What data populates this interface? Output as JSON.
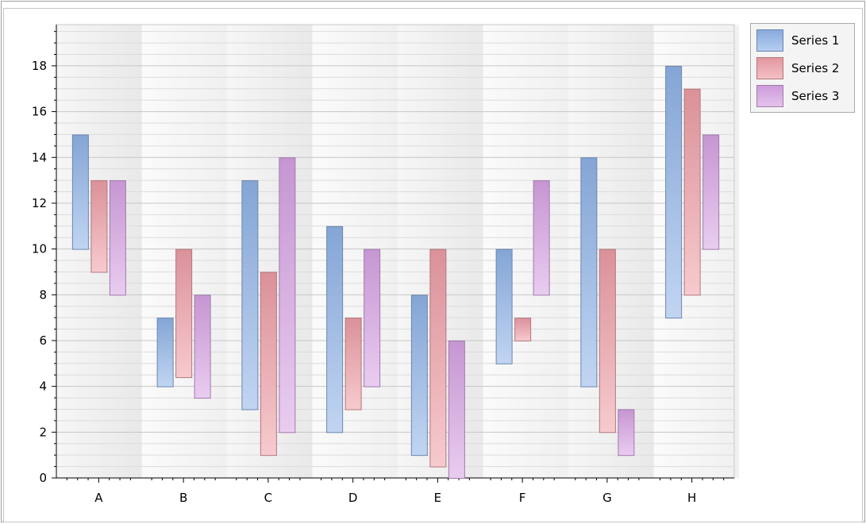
{
  "chart_data": {
    "type": "range-bar",
    "categories": [
      "A",
      "B",
      "C",
      "D",
      "E",
      "F",
      "G",
      "H"
    ],
    "series": [
      {
        "name": "Series 1",
        "color": "#8fb3e8",
        "ranges": [
          [
            10,
            15
          ],
          [
            4,
            7
          ],
          [
            3,
            13
          ],
          [
            2,
            11
          ],
          [
            1,
            8
          ],
          [
            5,
            10
          ],
          [
            4,
            14
          ],
          [
            7,
            18
          ]
        ]
      },
      {
        "name": "Series 2",
        "color": "#ee9ea6",
        "ranges": [
          [
            9,
            13
          ],
          [
            4.4,
            10
          ],
          [
            1,
            9
          ],
          [
            3,
            7
          ],
          [
            0.5,
            10
          ],
          [
            6,
            7
          ],
          [
            2,
            10
          ],
          [
            8,
            17
          ]
        ]
      },
      {
        "name": "Series 3",
        "color": "#d7a3e4",
        "ranges": [
          [
            8,
            13
          ],
          [
            3.5,
            8
          ],
          [
            2,
            14
          ],
          [
            4,
            10
          ],
          [
            0,
            6
          ],
          [
            8,
            13
          ],
          [
            1,
            3
          ],
          [
            10,
            15
          ]
        ]
      }
    ],
    "y_ticks": [
      "0",
      "2",
      "4",
      "6",
      "8",
      "10",
      "12",
      "14",
      "16",
      "18"
    ],
    "ylim": [
      0,
      19.8
    ],
    "minor_gridlines": true,
    "legend_position": "top-right"
  }
}
